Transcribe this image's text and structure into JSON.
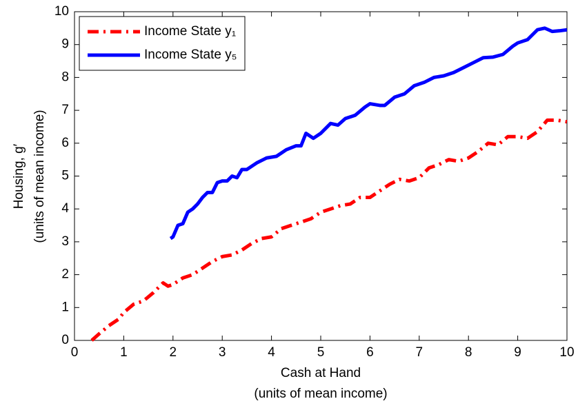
{
  "chart_data": {
    "type": "line",
    "xlabel": [
      "Cash at Hand",
      "(units of mean income)"
    ],
    "ylabel": [
      "Housing, g′",
      "(units of mean income)"
    ],
    "xlim": [
      0,
      10
    ],
    "ylim": [
      0,
      10
    ],
    "xticks": [
      0,
      1,
      2,
      3,
      4,
      5,
      6,
      7,
      8,
      9,
      10
    ],
    "yticks": [
      0,
      1,
      2,
      3,
      4,
      5,
      6,
      7,
      8,
      9,
      10
    ],
    "legend": "upper left",
    "series": [
      {
        "name": "Income State y₁",
        "color": "#ff0000",
        "linestyle": "dashdot",
        "x": [
          0.35,
          0.5,
          0.7,
          0.9,
          1.0,
          1.2,
          1.4,
          1.6,
          1.8,
          1.9,
          2.0,
          2.2,
          2.4,
          2.6,
          2.8,
          3.0,
          3.2,
          3.4,
          3.6,
          3.8,
          4.0,
          4.2,
          4.4,
          4.6,
          4.8,
          5.0,
          5.2,
          5.4,
          5.6,
          5.8,
          6.0,
          6.2,
          6.4,
          6.6,
          6.8,
          7.0,
          7.2,
          7.4,
          7.6,
          7.8,
          8.0,
          8.2,
          8.4,
          8.6,
          8.8,
          9.0,
          9.2,
          9.4,
          9.6,
          9.8,
          10
        ],
        "values": [
          0,
          0.2,
          0.45,
          0.65,
          0.85,
          1.1,
          1.2,
          1.45,
          1.75,
          1.65,
          1.7,
          1.9,
          2.0,
          2.2,
          2.4,
          2.55,
          2.6,
          2.75,
          2.95,
          3.1,
          3.15,
          3.4,
          3.5,
          3.6,
          3.7,
          3.9,
          4.0,
          4.1,
          4.15,
          4.35,
          4.35,
          4.55,
          4.75,
          4.9,
          4.85,
          4.95,
          5.25,
          5.35,
          5.5,
          5.45,
          5.55,
          5.75,
          6.0,
          5.95,
          6.2,
          6.2,
          6.15,
          6.35,
          6.7,
          6.7,
          6.65
        ]
      },
      {
        "name": "Income State y₅",
        "color": "#0000ff",
        "linestyle": "solid",
        "x": [
          1.95,
          2.0,
          2.1,
          2.2,
          2.3,
          2.4,
          2.5,
          2.6,
          2.7,
          2.8,
          2.9,
          3.0,
          3.1,
          3.2,
          3.3,
          3.4,
          3.5,
          3.7,
          3.9,
          4.1,
          4.3,
          4.5,
          4.6,
          4.7,
          4.85,
          5.0,
          5.2,
          5.35,
          5.5,
          5.7,
          5.9,
          6.0,
          6.2,
          6.3,
          6.5,
          6.7,
          6.9,
          7.1,
          7.3,
          7.5,
          7.7,
          7.9,
          8.1,
          8.3,
          8.5,
          8.7,
          8.9,
          9.0,
          9.2,
          9.4,
          9.55,
          9.7,
          9.85,
          10
        ],
        "values": [
          3.1,
          3.15,
          3.5,
          3.55,
          3.9,
          4.0,
          4.15,
          4.35,
          4.5,
          4.5,
          4.8,
          4.85,
          4.85,
          5.0,
          4.95,
          5.2,
          5.2,
          5.4,
          5.55,
          5.6,
          5.8,
          5.92,
          5.92,
          6.3,
          6.15,
          6.3,
          6.6,
          6.55,
          6.75,
          6.85,
          7.1,
          7.2,
          7.15,
          7.15,
          7.4,
          7.5,
          7.75,
          7.85,
          8.0,
          8.05,
          8.15,
          8.3,
          8.45,
          8.6,
          8.62,
          8.7,
          8.95,
          9.05,
          9.15,
          9.45,
          9.5,
          9.4,
          9.42,
          9.45
        ]
      }
    ]
  }
}
